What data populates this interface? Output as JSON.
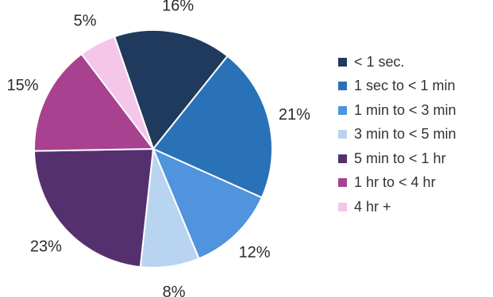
{
  "chart_data": {
    "type": "pie",
    "title": "",
    "categories": [
      "< 1 sec.",
      "1 sec to < 1 min",
      "1 min to < 3 min",
      "3 min to < 5 min",
      "5 min to < 1 hr",
      "1 hr to < 4 hr",
      "4 hr +"
    ],
    "values": [
      16,
      21,
      12,
      8,
      23,
      15,
      5
    ],
    "data_labels": [
      "16%",
      "21%",
      "12%",
      "8%",
      "23%",
      "15%",
      "5%"
    ],
    "colors": [
      "#1f3a5c",
      "#2a72b8",
      "#4f94dc",
      "#b9d4f1",
      "#55306f",
      "#a8418f",
      "#f3c6ea"
    ],
    "start_angle_deg": 341,
    "direction": "clockwise",
    "legend_position": "right"
  }
}
